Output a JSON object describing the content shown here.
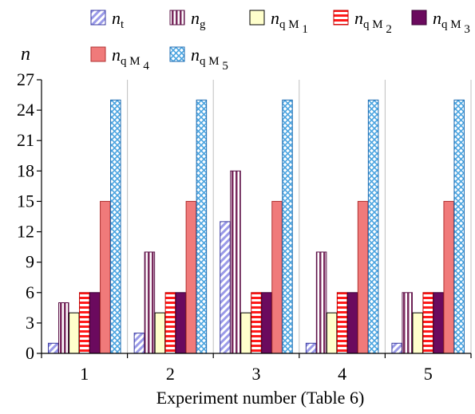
{
  "chart_data": {
    "type": "bar",
    "title": "",
    "xlabel": "Experiment number (Table 6)",
    "ylabel": "n",
    "ylim": [
      0,
      27
    ],
    "yticks": [
      0,
      3,
      6,
      9,
      12,
      15,
      18,
      21,
      24,
      27
    ],
    "grid": "vertical category separators",
    "legend_placement": "top",
    "categories": [
      "1",
      "2",
      "3",
      "4",
      "5"
    ],
    "series": [
      {
        "name": "n_t",
        "base": "n",
        "sub": "t",
        "values": [
          1,
          2,
          13,
          1,
          1
        ],
        "pattern": "diag-blue"
      },
      {
        "name": "n_g",
        "base": "n",
        "sub": "g",
        "values": [
          5,
          10,
          18,
          10,
          6
        ],
        "pattern": "vstripe-purple"
      },
      {
        "name": "n_qM1",
        "base": "n",
        "sub": "q M",
        "subsub": "1",
        "values": [
          4,
          4,
          4,
          4,
          4
        ],
        "pattern": "solid-yellow"
      },
      {
        "name": "n_qM2",
        "base": "n",
        "sub": "q M",
        "subsub": "2",
        "values": [
          6,
          6,
          6,
          6,
          6
        ],
        "pattern": "hstripe-red"
      },
      {
        "name": "n_qM3",
        "base": "n",
        "sub": "q M",
        "subsub": "3",
        "values": [
          6,
          6,
          6,
          6,
          6
        ],
        "pattern": "solid-purple"
      },
      {
        "name": "n_qM4",
        "base": "n",
        "sub": "q M",
        "subsub": "4",
        "values": [
          15,
          15,
          15,
          15,
          15
        ],
        "pattern": "solid-salmon"
      },
      {
        "name": "n_qM5",
        "base": "n",
        "sub": "q M",
        "subsub": "5",
        "values": [
          25,
          25,
          25,
          25,
          25
        ],
        "pattern": "cross-blue"
      }
    ],
    "colors": {
      "diag_blue": "#9a9ae8",
      "stripe_purple": "#7a2a5e",
      "yellow": "#ffffcc",
      "red": "#ff1a1a",
      "purple": "#6b0a5e",
      "salmon": "#f07a7a",
      "cross_blue": "#4aa4e0"
    }
  }
}
